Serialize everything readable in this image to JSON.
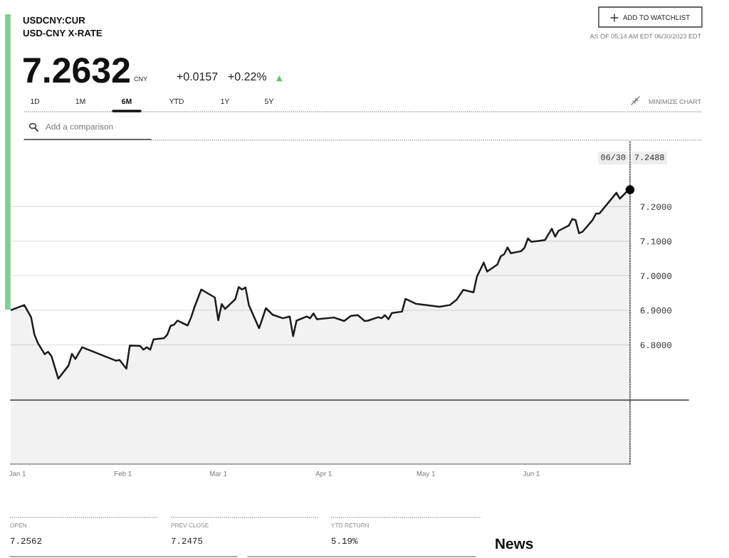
{
  "chart_data": {
    "type": "area",
    "title": "USDCNY:CUR",
    "subtitle": "USD-CNY X-RATE",
    "annotations": [
      "7.2632",
      "CNY",
      "+0.0157",
      "+0.22%",
      "▲",
      "AS OF 05:14 AM EDT 06/30/2023 EDT",
      "ADD TO WATCHLIST",
      "1D",
      "1M",
      "6M",
      "YTD",
      "1Y",
      "5Y",
      "MINIMIZE CHART",
      "Add a comparison",
      "OPEN",
      "7.2562",
      "PREV CLOSE",
      "7.2475",
      "YTD RETURN",
      "5.19%",
      "News",
      "06/30",
      "7.2488"
    ],
    "xlim": [
      "2022-12-30",
      "2023-06-30"
    ],
    "xticks": [
      {
        "value": "2023-01-01",
        "label": "Jan 1"
      },
      {
        "value": "2023-02-01",
        "label": "Feb 1"
      },
      {
        "value": "2023-03-01",
        "label": "Mar 1"
      },
      {
        "value": "2023-04-01",
        "label": "Apr 1"
      },
      {
        "value": "2023-05-01",
        "label": "May 1"
      },
      {
        "value": "2023-06-01",
        "label": "Jun 1"
      }
    ],
    "ylim": [
      6.455,
      7.39
    ],
    "yticks": [
      {
        "value": 6.8,
        "label": "6.8000"
      },
      {
        "value": 6.9,
        "label": "6.9000"
      },
      {
        "value": 7.0,
        "label": "7.0000"
      },
      {
        "value": 7.1,
        "label": "7.1000"
      },
      {
        "value": 7.2,
        "label": "7.2000"
      }
    ],
    "grid": "y",
    "ref_lines": [
      {
        "axis": "y",
        "value": 6.64,
        "color": "#555555"
      }
    ],
    "series": [
      {
        "color": "#1a1a1a",
        "x": [
          "2022-12-30",
          "2023-01-03",
          "2023-01-05",
          "2023-01-06",
          "2023-01-07",
          "2023-01-09",
          "2023-01-10",
          "2023-01-11",
          "2023-01-13",
          "2023-01-16",
          "2023-01-17",
          "2023-01-18",
          "2023-01-20",
          "2023-01-30",
          "2023-01-31",
          "2023-02-02",
          "2023-02-03",
          "2023-02-06",
          "2023-02-07",
          "2023-02-08",
          "2023-02-09",
          "2023-02-10",
          "2023-02-13",
          "2023-02-14",
          "2023-02-15",
          "2023-02-16",
          "2023-02-17",
          "2023-02-20",
          "2023-02-21",
          "2023-02-22",
          "2023-02-24",
          "2023-02-28",
          "2023-03-01",
          "2023-03-02",
          "2023-03-03",
          "2023-03-06",
          "2023-03-07",
          "2023-03-08",
          "2023-03-09",
          "2023-03-10",
          "2023-03-13",
          "2023-03-15",
          "2023-03-17",
          "2023-03-20",
          "2023-03-22",
          "2023-03-23",
          "2023-03-24",
          "2023-03-27",
          "2023-03-28",
          "2023-03-29",
          "2023-03-30",
          "2023-04-04",
          "2023-04-07",
          "2023-04-09",
          "2023-04-11",
          "2023-04-13",
          "2023-04-14",
          "2023-04-17",
          "2023-04-18",
          "2023-04-19",
          "2023-04-20",
          "2023-04-21",
          "2023-04-24",
          "2023-04-25",
          "2023-04-28",
          "2023-05-05",
          "2023-05-08",
          "2023-05-10",
          "2023-05-12",
          "2023-05-15",
          "2023-05-16",
          "2023-05-18",
          "2023-05-19",
          "2023-05-22",
          "2023-05-23",
          "2023-05-24",
          "2023-05-25",
          "2023-05-26",
          "2023-05-29",
          "2023-05-30",
          "2023-05-31",
          "2023-06-01",
          "2023-06-05",
          "2023-06-07",
          "2023-06-08",
          "2023-06-09",
          "2023-06-12",
          "2023-06-13",
          "2023-06-14",
          "2023-06-15",
          "2023-06-16",
          "2023-06-19",
          "2023-06-20",
          "2023-06-21",
          "2023-06-26",
          "2023-06-27",
          "2023-06-29",
          "2023-06-30"
        ],
        "values": [
          6.9,
          6.915,
          6.88,
          6.829,
          6.805,
          6.773,
          6.78,
          6.767,
          6.702,
          6.74,
          6.774,
          6.759,
          6.793,
          6.754,
          6.756,
          6.731,
          6.798,
          6.797,
          6.786,
          6.793,
          6.786,
          6.816,
          6.819,
          6.829,
          6.855,
          6.858,
          6.87,
          6.856,
          6.879,
          6.909,
          6.96,
          6.937,
          6.871,
          6.918,
          6.904,
          6.932,
          6.967,
          6.96,
          6.966,
          6.915,
          6.848,
          6.906,
          6.887,
          6.877,
          6.882,
          6.825,
          6.87,
          6.882,
          6.877,
          6.891,
          6.874,
          6.879,
          6.869,
          6.884,
          6.886,
          6.869,
          6.87,
          6.88,
          6.877,
          6.886,
          6.874,
          6.892,
          6.896,
          6.933,
          6.919,
          6.91,
          6.915,
          6.93,
          6.959,
          6.952,
          6.997,
          7.038,
          7.012,
          7.032,
          7.056,
          7.062,
          7.082,
          7.065,
          7.071,
          7.081,
          7.108,
          7.098,
          7.103,
          7.136,
          7.113,
          7.13,
          7.145,
          7.164,
          7.161,
          7.123,
          7.127,
          7.161,
          7.18,
          7.18,
          7.24,
          7.223,
          7.243,
          7.2488
        ]
      },
      {
        "type": "scatter",
        "color": "#000000",
        "marker": "circle",
        "x": [
          "2023-06-30"
        ],
        "values": [
          7.2488
        ]
      }
    ]
  }
}
